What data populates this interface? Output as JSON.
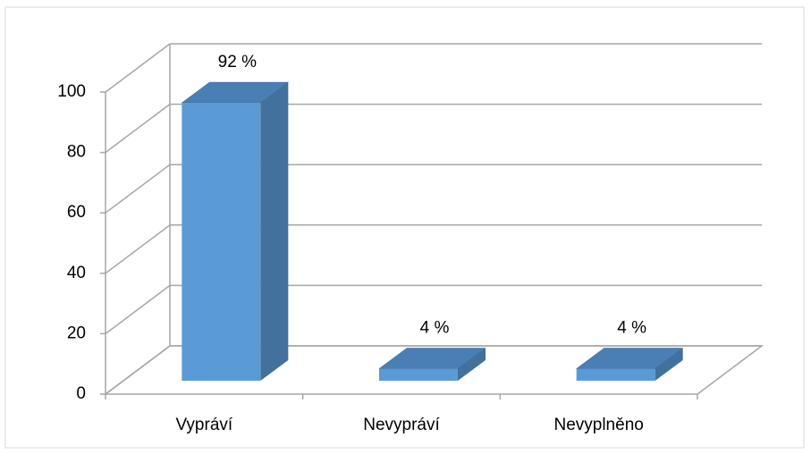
{
  "chart_data": {
    "type": "bar3d",
    "categories": [
      "Vypráví",
      "Nevypráví",
      "Nevyplněno"
    ],
    "values": [
      92,
      4,
      4
    ],
    "value_labels": [
      "92 %",
      "4 %",
      "4 %"
    ],
    "color": "#5b9bd5",
    "ylim": [
      0,
      100
    ],
    "yticks": [
      0,
      20,
      40,
      60,
      80,
      100
    ],
    "grid": true
  }
}
